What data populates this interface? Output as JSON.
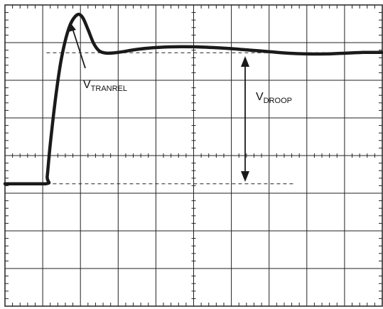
{
  "chart_data": {
    "type": "line",
    "grid": true,
    "grid_divisions": {
      "x": 10,
      "y": 8
    },
    "xlim": [
      0,
      10
    ],
    "ylim": [
      0,
      8
    ],
    "series": [
      {
        "x": [
          0,
          1.08,
          1.12,
          1.2,
          1.35,
          1.5,
          1.7,
          1.9,
          2.05,
          2.2,
          2.35,
          2.5,
          2.7,
          3.0,
          3.5,
          4.0,
          4.5,
          5.0,
          5.5,
          6.0,
          6.5,
          7.0,
          7.5,
          8.0,
          8.5,
          9.0,
          9.5,
          10.0
        ],
        "y": [
          3.25,
          3.25,
          3.45,
          4.3,
          5.6,
          6.6,
          7.4,
          7.73,
          7.68,
          7.35,
          6.98,
          6.78,
          6.72,
          6.74,
          6.82,
          6.87,
          6.89,
          6.89,
          6.87,
          6.84,
          6.8,
          6.76,
          6.72,
          6.7,
          6.7,
          6.72,
          6.74,
          6.74
        ]
      }
    ],
    "reference_levels": [
      {
        "y": 6.73,
        "x_start": 1.1,
        "x_end": 10
      },
      {
        "y": 3.25,
        "x_start": 1.1,
        "x_end": 7.7
      }
    ],
    "annotations": {
      "tranrel": {
        "main": "V",
        "sub": "TRANREL"
      },
      "droop": {
        "main": "V",
        "sub": "DROOP"
      }
    },
    "colors": {
      "trace": "#1a1a1a",
      "grid": "#222222",
      "background": "#ffffff"
    }
  }
}
